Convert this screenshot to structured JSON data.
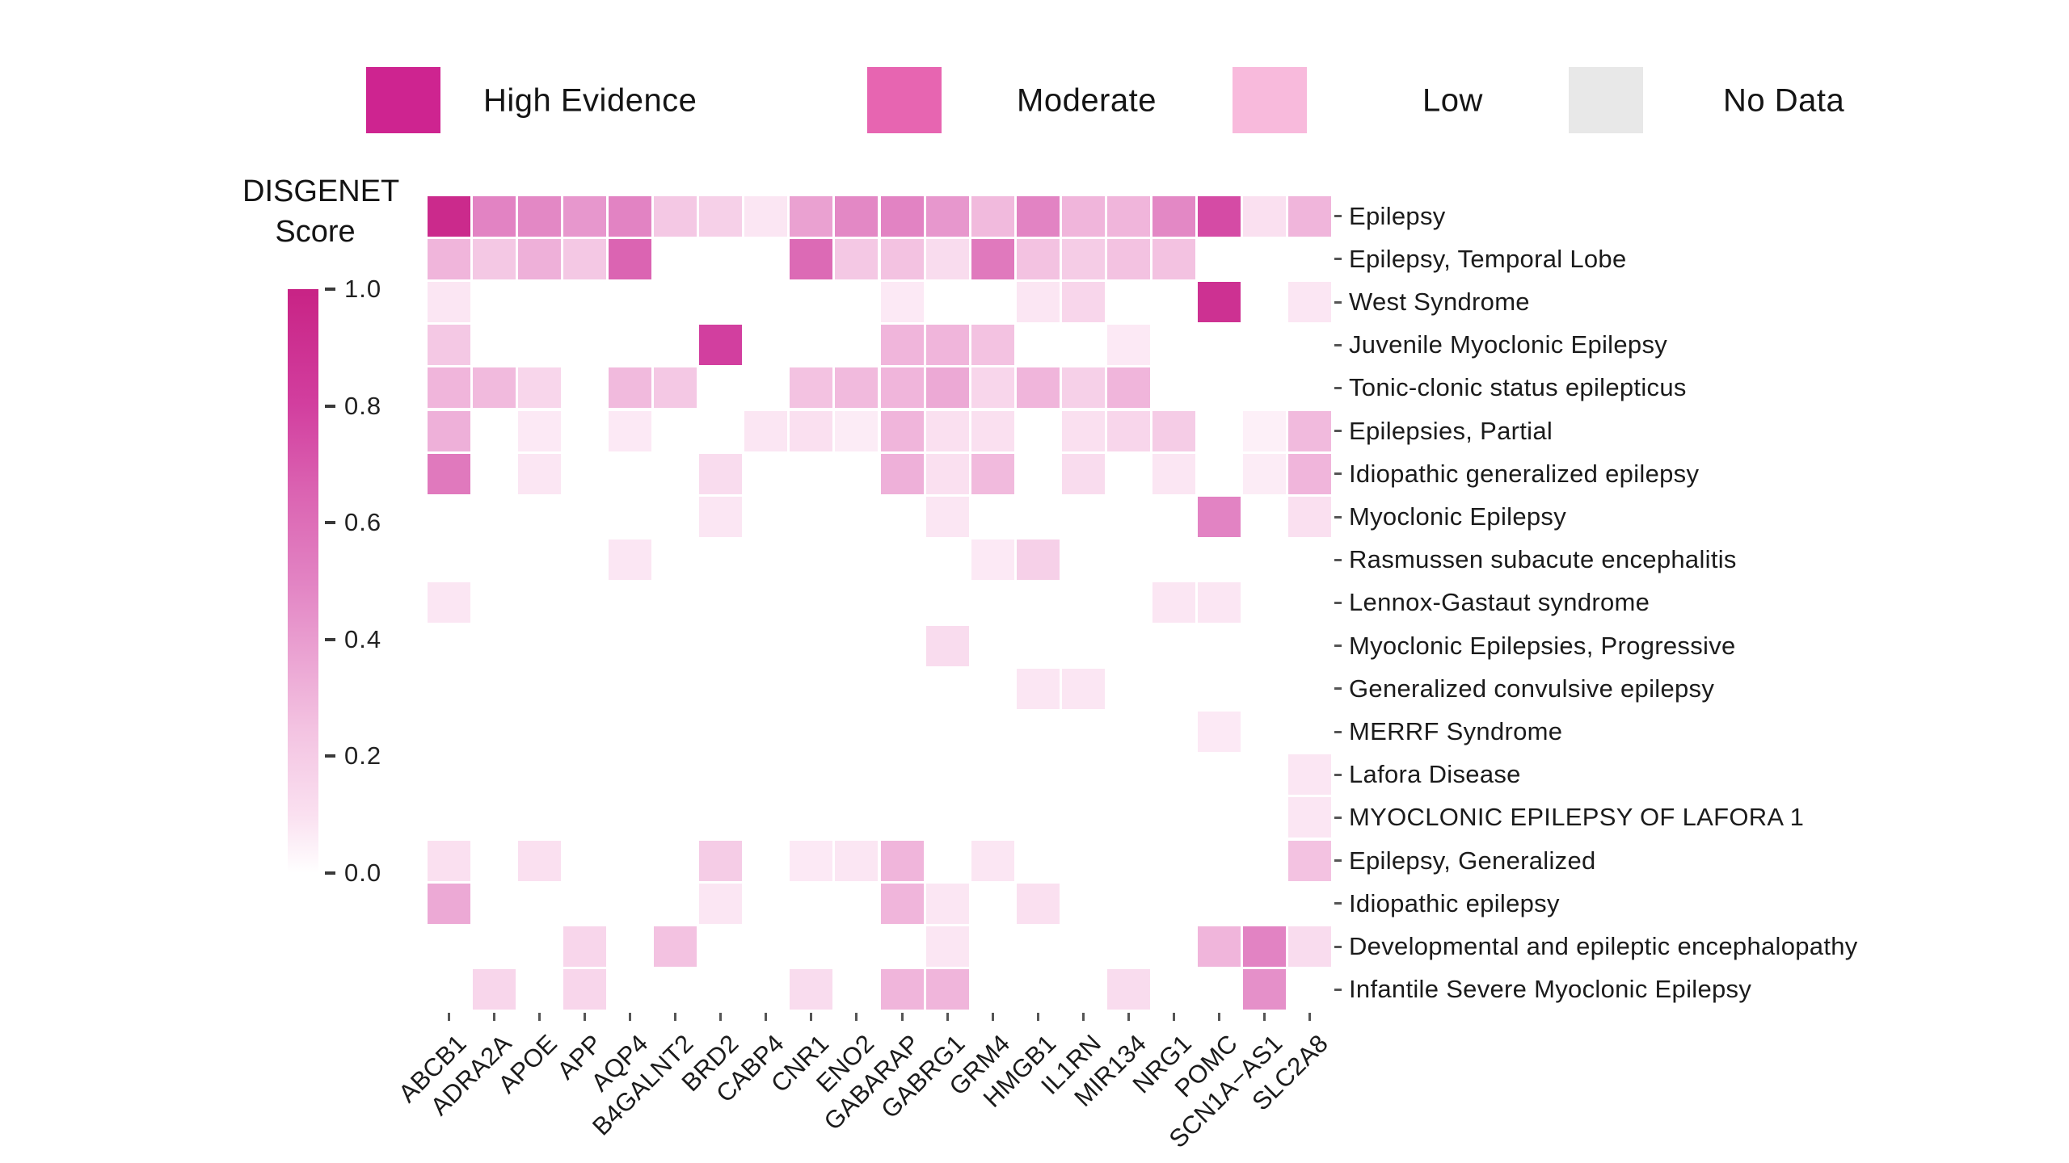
{
  "legend": {
    "items": [
      {
        "label": "High Evidence",
        "color": "#CE2490"
      },
      {
        "label": "Moderate",
        "color": "#E765B1"
      },
      {
        "label": "Low",
        "color": "#F8BADC"
      },
      {
        "label": "No Data",
        "color": "#E8E8E8"
      }
    ]
  },
  "colorbar": {
    "title_lines": [
      "DISGENET",
      "Score"
    ],
    "ticks": [
      "1.0",
      "0.8",
      "0.6",
      "0.4",
      "0.2",
      "0.0"
    ]
  },
  "chart_data": {
    "type": "heatmap",
    "title": "",
    "xlabel": "",
    "ylabel": "",
    "colorbar_label": "DISGENET Score",
    "value_range": [
      0.0,
      1.0
    ],
    "legend_position": "top",
    "grid": false,
    "no_data_value": 0,
    "colormap_stops": [
      {
        "v": 0.0,
        "c": "#ffffff"
      },
      {
        "v": 0.1,
        "c": "#fae0f0"
      },
      {
        "v": 0.25,
        "c": "#f3c2e1"
      },
      {
        "v": 0.5,
        "c": "#e283c3"
      },
      {
        "v": 0.65,
        "c": "#db64b2"
      },
      {
        "v": 0.8,
        "c": "#d23f9f"
      },
      {
        "v": 1.0,
        "c": "#c82385"
      }
    ],
    "x_categories": [
      "ABCB1",
      "ADRA2A",
      "APOE",
      "APP",
      "AQP4",
      "B4GALNT2",
      "BRD2",
      "CABP4",
      "CNR1",
      "ENO2",
      "GABARAP",
      "GABRG1",
      "GRM4",
      "HMGB1",
      "IL1RN",
      "MIR134",
      "NRG1",
      "POMC",
      "SCN1A−AS1",
      "SLC2A8"
    ],
    "y_categories": [
      "Epilepsy",
      "Epilepsy, Temporal Lobe",
      "West Syndrome",
      "Juvenile Myoclonic Epilepsy",
      "Tonic-clonic status epilepticus",
      "Epilepsies, Partial",
      "Idiopathic generalized epilepsy",
      "Myoclonic Epilepsy",
      "Rasmussen subacute encephalitis",
      "Lennox-Gastaut syndrome",
      "Myoclonic Epilepsies, Progressive",
      "Generalized convulsive epilepsy",
      "MERRF Syndrome",
      "Lafora Disease",
      "MYOCLONIC EPILEPSY OF LAFORA 1",
      "Epilepsy, Generalized",
      "Idiopathic epilepsy",
      "Developmental and epileptic encephalopathy",
      "Infantile Severe Myoclonic Epilepsy"
    ],
    "values": [
      [
        0.95,
        0.5,
        0.48,
        0.42,
        0.5,
        0.22,
        0.18,
        0.08,
        0.38,
        0.48,
        0.5,
        0.42,
        0.28,
        0.5,
        0.3,
        0.3,
        0.48,
        0.75,
        0.1,
        0.3
      ],
      [
        0.3,
        0.22,
        0.32,
        0.22,
        0.65,
        0,
        0,
        0,
        0.62,
        0.22,
        0.25,
        0.12,
        0.55,
        0.25,
        0.2,
        0.25,
        0.25,
        0,
        0,
        0
      ],
      [
        0.08,
        0,
        0,
        0,
        0,
        0,
        0,
        0,
        0,
        0,
        0.07,
        0,
        0,
        0.08,
        0.15,
        0,
        0,
        0.9,
        0,
        0.08
      ],
      [
        0.22,
        0,
        0,
        0,
        0,
        0,
        0.8,
        0,
        0,
        0,
        0.3,
        0.3,
        0.25,
        0,
        0,
        0.07,
        0,
        0,
        0,
        0
      ],
      [
        0.3,
        0.28,
        0.15,
        0,
        0.28,
        0.22,
        0,
        0,
        0.25,
        0.28,
        0.3,
        0.35,
        0.15,
        0.3,
        0.18,
        0.3,
        0,
        0,
        0,
        0
      ],
      [
        0.32,
        0,
        0.07,
        0,
        0.07,
        0,
        0,
        0.08,
        0.1,
        0.06,
        0.3,
        0.1,
        0.1,
        0,
        0.1,
        0.15,
        0.2,
        0,
        0.05,
        0.28
      ],
      [
        0.55,
        0,
        0.08,
        0,
        0,
        0,
        0.12,
        0,
        0,
        0,
        0.32,
        0.1,
        0.28,
        0,
        0.12,
        0,
        0.08,
        0,
        0.06,
        0.3
      ],
      [
        0,
        0,
        0,
        0,
        0,
        0,
        0.08,
        0,
        0,
        0,
        0,
        0.08,
        0,
        0,
        0,
        0,
        0,
        0.5,
        0,
        0.1
      ],
      [
        0,
        0,
        0,
        0,
        0.08,
        0,
        0,
        0,
        0,
        0,
        0,
        0,
        0.07,
        0.18,
        0,
        0,
        0,
        0,
        0,
        0
      ],
      [
        0.08,
        0,
        0,
        0,
        0,
        0,
        0,
        0,
        0,
        0,
        0,
        0,
        0,
        0,
        0,
        0,
        0.08,
        0.08,
        0,
        0
      ],
      [
        0,
        0,
        0,
        0,
        0,
        0,
        0,
        0,
        0,
        0,
        0,
        0.12,
        0,
        0,
        0,
        0,
        0,
        0,
        0,
        0
      ],
      [
        0,
        0,
        0,
        0,
        0,
        0,
        0,
        0,
        0,
        0,
        0,
        0,
        0,
        0.08,
        0.08,
        0,
        0,
        0,
        0,
        0
      ],
      [
        0,
        0,
        0,
        0,
        0,
        0,
        0,
        0,
        0,
        0,
        0,
        0,
        0,
        0,
        0,
        0,
        0,
        0.07,
        0,
        0
      ],
      [
        0,
        0,
        0,
        0,
        0,
        0,
        0,
        0,
        0,
        0,
        0,
        0,
        0,
        0,
        0,
        0,
        0,
        0,
        0,
        0.08
      ],
      [
        0,
        0,
        0,
        0,
        0,
        0,
        0,
        0,
        0,
        0,
        0,
        0,
        0,
        0,
        0,
        0,
        0,
        0,
        0,
        0.08
      ],
      [
        0.1,
        0,
        0.1,
        0,
        0,
        0,
        0.2,
        0,
        0.07,
        0.08,
        0.3,
        0,
        0.08,
        0,
        0,
        0,
        0,
        0,
        0,
        0.25
      ],
      [
        0.35,
        0,
        0,
        0,
        0,
        0,
        0.08,
        0,
        0,
        0,
        0.3,
        0.08,
        0,
        0.1,
        0,
        0,
        0,
        0,
        0,
        0
      ],
      [
        0,
        0,
        0,
        0.15,
        0,
        0.25,
        0,
        0,
        0,
        0,
        0,
        0.08,
        0,
        0,
        0,
        0,
        0,
        0.3,
        0.5,
        0.12
      ],
      [
        0,
        0.15,
        0,
        0.15,
        0,
        0,
        0,
        0,
        0.12,
        0,
        0.3,
        0.3,
        0,
        0,
        0,
        0.12,
        0,
        0,
        0.45,
        0
      ]
    ]
  }
}
